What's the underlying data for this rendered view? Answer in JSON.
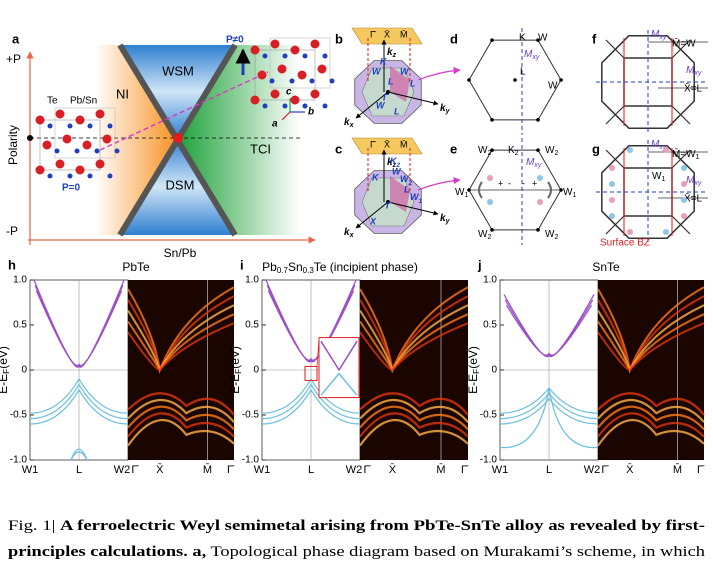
{
  "panel_a": {
    "label": "a",
    "plus_p": "+P",
    "minus_p": "-P",
    "y_axis": "Polarity",
    "x_axis": "Sn/Pb",
    "phases": [
      "NI",
      "WSM",
      "TCI",
      "DSM"
    ],
    "atoms": [
      "Te",
      "Pb/Sn"
    ],
    "p_zero": "P=0",
    "p_nonzero": "P≠0",
    "axes": [
      "c",
      "a",
      "b"
    ]
  },
  "panel_b": {
    "label": "b",
    "surface_points": [
      "Γ̄",
      "X̄",
      "M̄"
    ],
    "kz": {
      "base": "k",
      "sub": "z"
    },
    "ky": {
      "base": "k",
      "sub": "y"
    },
    "kx": {
      "base": "k",
      "sub": "x"
    },
    "points": [
      "W",
      "L",
      "K",
      "W",
      "L",
      "Γ",
      "W",
      "L"
    ]
  },
  "panel_c": {
    "label": "c",
    "surface_points": [
      "Γ̄",
      "X̄",
      "M̄"
    ],
    "kz": {
      "base": "k",
      "sub": "z"
    },
    "ky": {
      "base": "k",
      "sub": "y"
    },
    "kx": {
      "base": "k",
      "sub": "x"
    },
    "points": [
      "K",
      "W",
      "L",
      "Γ",
      "X"
    ],
    "w1": {
      "base": "W",
      "sub": "1"
    },
    "w2": {
      "base": "W",
      "sub": "2"
    },
    "k2": {
      "base": "K",
      "sub": "2"
    }
  },
  "panel_d": {
    "label": "d",
    "k": "K",
    "w_top": "W",
    "mxy": {
      "base": "M",
      "sub": "xy"
    },
    "l": "L",
    "w_right": "W"
  },
  "panel_e": {
    "label": "e",
    "mxy": {
      "base": "M",
      "sub": "xy"
    },
    "k2": {
      "base": "K",
      "sub": "2"
    },
    "w2": [
      {
        "base": "W",
        "sub": "2"
      },
      {
        "base": "W",
        "sub": "2"
      },
      {
        "base": "W",
        "sub": "2"
      },
      {
        "base": "W",
        "sub": "2"
      }
    ],
    "w1": [
      {
        "base": "W",
        "sub": "1"
      },
      {
        "base": "W",
        "sub": "1"
      }
    ],
    "signs": [
      "+",
      "-",
      "-",
      "+"
    ]
  },
  "panel_f": {
    "label": "f",
    "mxy_top": {
      "base": "M",
      "sub": "xy"
    },
    "mxy_right": {
      "base": "M",
      "sub": "xy"
    },
    "m_w": "M̄=W",
    "x_l": "X̄=L"
  },
  "panel_g": {
    "label": "g",
    "mxy_top": {
      "base": "M",
      "sub": "xy"
    },
    "mxy_right": {
      "base": "M",
      "sub": "xy"
    },
    "m_w1": {
      "base": "M̄=W",
      "sub": "1"
    },
    "w1": {
      "base": "W",
      "sub": "1"
    },
    "x_l": "X̄=L",
    "surface_bz": "Surface BZ"
  },
  "panels_bands": [
    {
      "label": "h",
      "title": "PbTe"
    },
    {
      "label": "i",
      "title_parts": [
        "Pb",
        "0.7",
        "Sn",
        "0.3",
        "Te (incipient phase)"
      ]
    },
    {
      "label": "j",
      "title": "SnTe"
    }
  ],
  "band_axis": {
    "y_label": {
      "base": "E-E",
      "sub": "F",
      "rest": "(eV)"
    },
    "y_ticks": [
      "1.0",
      "0.5",
      "0",
      "-0.5",
      "-1.0"
    ],
    "x_labels": [
      "W1",
      "L",
      "W2"
    ],
    "surface_labels": [
      "Γ̄",
      "X̄",
      "M̄",
      "Γ̄"
    ]
  },
  "caption": {
    "line1_prefix": "Fig. 1| ",
    "line1_bold": "A ferroelectric Weyl semimetal arising from PbTe-SnTe alloy as revealed by first-",
    "line2_bold": "principles calculations. a,",
    "line2_rest": " Topological phase diagram based on Murakami’s scheme, in which"
  }
}
